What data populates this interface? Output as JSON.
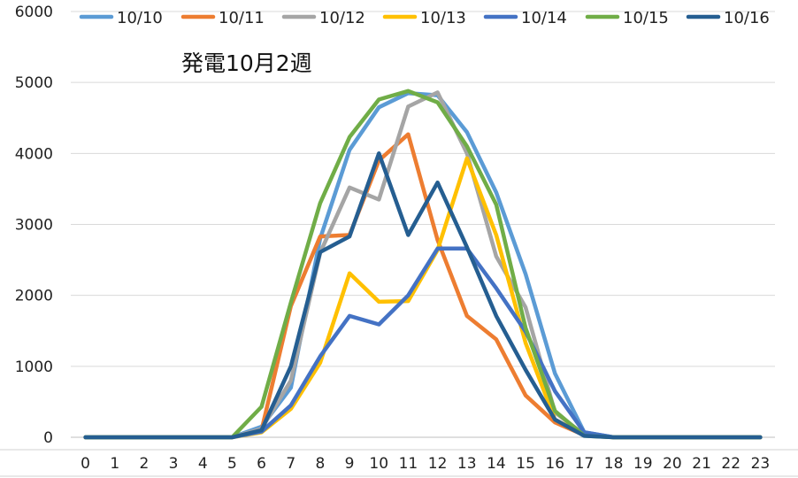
{
  "chart_data": {
    "type": "line",
    "title": "発電10月2週",
    "xlabel": "",
    "ylabel": "",
    "ylim": [
      0,
      6000
    ],
    "yticks": [
      0,
      1000,
      2000,
      3000,
      4000,
      5000,
      6000
    ],
    "grid": "horizontal",
    "legend_position": "top",
    "x": [
      0,
      1,
      2,
      3,
      4,
      5,
      6,
      7,
      8,
      9,
      10,
      11,
      12,
      13,
      14,
      15,
      16,
      17,
      18,
      19,
      20,
      21,
      22,
      23
    ],
    "series": [
      {
        "name": "10/10",
        "color": "#5B9BD5",
        "values": [
          0,
          0,
          0,
          0,
          0,
          0,
          150,
          700,
          2800,
          4050,
          4650,
          4850,
          4820,
          4300,
          3450,
          2300,
          900,
          70,
          0,
          0,
          0,
          0,
          0,
          0
        ]
      },
      {
        "name": "10/11",
        "color": "#ED7D31",
        "values": [
          0,
          0,
          0,
          0,
          0,
          0,
          100,
          1850,
          2830,
          2850,
          3900,
          4270,
          2780,
          1710,
          1380,
          590,
          210,
          30,
          0,
          0,
          0,
          0,
          0,
          0
        ]
      },
      {
        "name": "10/12",
        "color": "#A5A5A5",
        "values": [
          0,
          0,
          0,
          0,
          0,
          0,
          120,
          800,
          2600,
          3520,
          3350,
          4660,
          4860,
          4000,
          2550,
          1830,
          350,
          40,
          0,
          0,
          0,
          0,
          0,
          0
        ]
      },
      {
        "name": "10/13",
        "color": "#FFC000",
        "values": [
          0,
          0,
          0,
          0,
          0,
          0,
          70,
          400,
          1050,
          2310,
          1910,
          1920,
          2640,
          3930,
          2850,
          1330,
          250,
          30,
          0,
          0,
          0,
          0,
          0,
          0
        ]
      },
      {
        "name": "10/14",
        "color": "#4472C4",
        "values": [
          0,
          0,
          0,
          0,
          0,
          0,
          80,
          450,
          1140,
          1710,
          1590,
          2000,
          2660,
          2660,
          2100,
          1490,
          650,
          70,
          0,
          0,
          0,
          0,
          0,
          0
        ]
      },
      {
        "name": "10/15",
        "color": "#70AD47",
        "values": [
          0,
          0,
          0,
          0,
          0,
          0,
          430,
          1900,
          3300,
          4230,
          4760,
          4880,
          4720,
          4100,
          3280,
          1540,
          370,
          20,
          0,
          0,
          0,
          0,
          0,
          0
        ]
      },
      {
        "name": "10/16",
        "color": "#255E91",
        "values": [
          0,
          0,
          0,
          0,
          0,
          0,
          100,
          1000,
          2610,
          2830,
          4000,
          2850,
          3590,
          2680,
          1710,
          950,
          250,
          20,
          0,
          0,
          0,
          0,
          0,
          0
        ]
      }
    ]
  }
}
